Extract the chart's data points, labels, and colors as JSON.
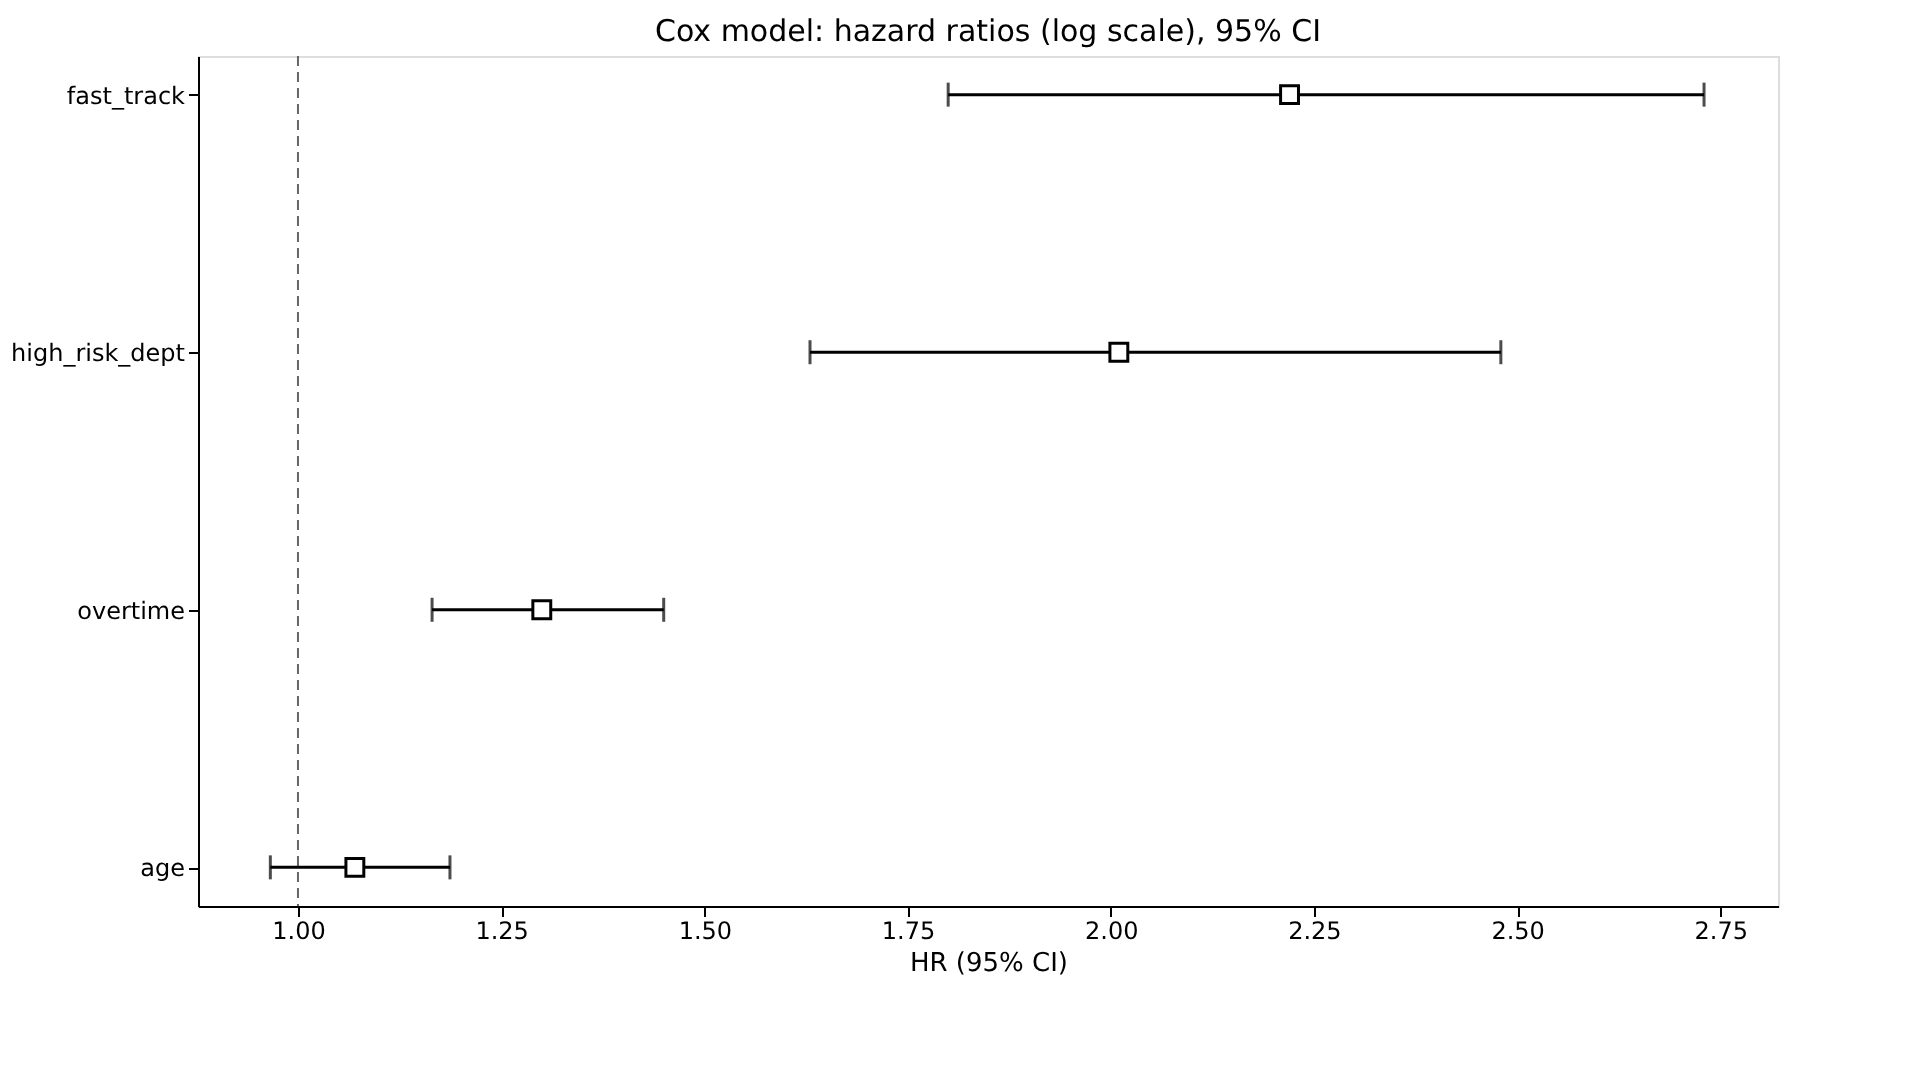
{
  "chart_data": {
    "type": "scatter",
    "orientation": "horizontal",
    "title": "Cox model: hazard ratios (log scale), 95% CI",
    "xlabel": "HR (95% CI)",
    "categories": [
      "fast_track",
      "high_risk_dept",
      "overtime",
      "age"
    ],
    "values": [
      2.22,
      2.01,
      1.3,
      1.07
    ],
    "errors": [
      [
        1.8,
        2.73
      ],
      [
        1.63,
        2.48
      ],
      [
        1.165,
        1.45
      ],
      [
        0.966,
        1.187
      ]
    ],
    "color": "#000000",
    "marker": "square",
    "xlim": [
      0.877,
      2.821
    ],
    "xticks": [
      {
        "value": 1.0,
        "label": "1.00"
      },
      {
        "value": 1.25,
        "label": "1.25"
      },
      {
        "value": 1.5,
        "label": "1.50"
      },
      {
        "value": 1.75,
        "label": "1.75"
      },
      {
        "value": 2.0,
        "label": "2.00"
      },
      {
        "value": 2.25,
        "label": "2.25"
      },
      {
        "value": 2.5,
        "label": "2.50"
      },
      {
        "value": 2.75,
        "label": "2.75"
      }
    ],
    "ref_lines": [
      {
        "axis": "x",
        "value": 1.0,
        "color": "#666666",
        "line_style": "dashed"
      }
    ],
    "grid": false
  }
}
